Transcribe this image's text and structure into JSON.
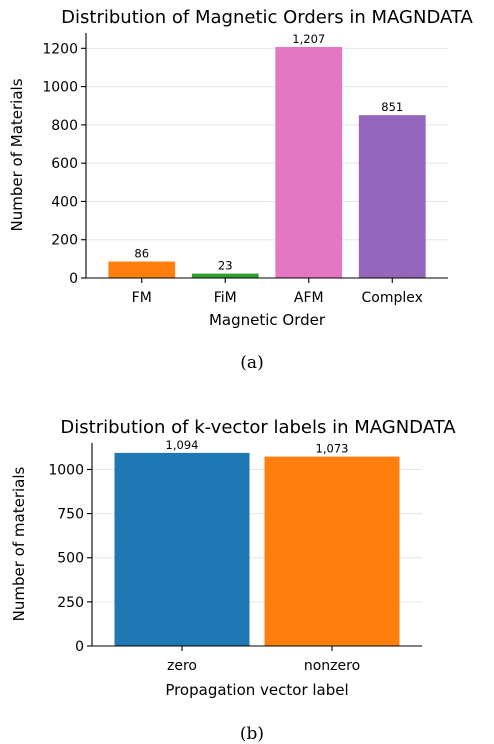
{
  "chart_data": [
    {
      "type": "bar",
      "title": "Distribution of Magnetic Orders in MAGNDATA",
      "xlabel": "Magnetic Order",
      "ylabel": "Number of Materials",
      "categories": [
        "FM",
        "FiM",
        "AFM",
        "Complex"
      ],
      "values": [
        86,
        23,
        1207,
        851
      ],
      "value_labels": [
        "86",
        "23",
        "1,207",
        "851"
      ],
      "colors": [
        "#ff7f0e",
        "#2ca02c",
        "#e377c2",
        "#9467bd"
      ],
      "ylim": [
        0,
        1280
      ],
      "yticks": [
        0,
        200,
        400,
        600,
        800,
        1000,
        1200
      ],
      "grid": true,
      "caption": "(a)"
    },
    {
      "type": "bar",
      "title": "Distribution of k-vector labels in MAGNDATA",
      "xlabel": "Propagation vector label",
      "ylabel": "Number of materials",
      "categories": [
        "zero",
        "nonzero"
      ],
      "values": [
        1094,
        1073
      ],
      "value_labels": [
        "1,094",
        "1,073"
      ],
      "colors": [
        "#1f77b4",
        "#ff7f0e"
      ],
      "ylim": [
        0,
        1150
      ],
      "yticks": [
        0,
        250,
        500,
        750,
        1000
      ],
      "grid": true,
      "caption": "(b)"
    }
  ]
}
